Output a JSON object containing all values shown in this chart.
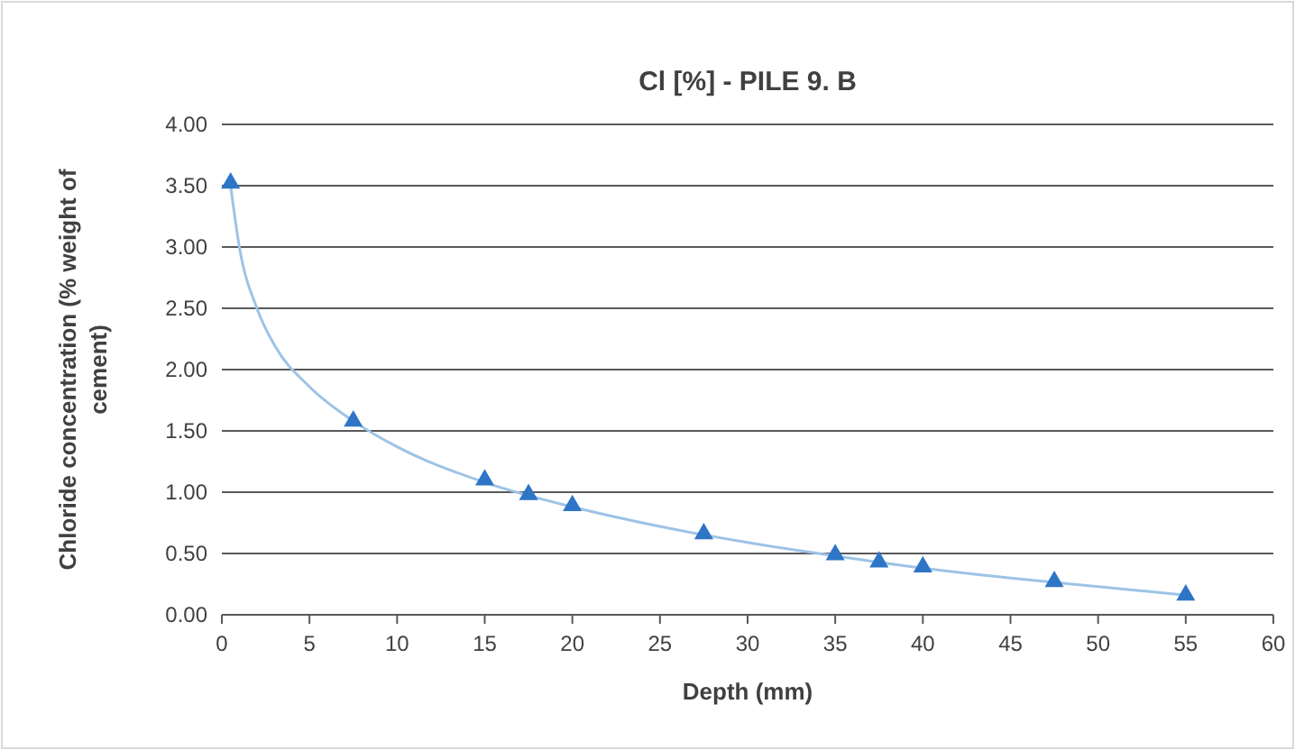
{
  "chart_data": {
    "type": "scatter",
    "title": "Cl [%] - PILE 9. B",
    "xlabel": "Depth (mm)",
    "ylabel": "Chloride concentration (% weight of cement)",
    "xlim": [
      0,
      60
    ],
    "xticks": [
      0,
      5,
      10,
      15,
      20,
      25,
      30,
      35,
      40,
      45,
      50,
      55,
      60
    ],
    "ylim": [
      0,
      4
    ],
    "yticks": [
      {
        "value": 0,
        "label": "0.00"
      },
      {
        "value": 0.5,
        "label": "0.50"
      },
      {
        "value": 1,
        "label": "1.00"
      },
      {
        "value": 1.5,
        "label": "1.50"
      },
      {
        "value": 2,
        "label": "2.00"
      },
      {
        "value": 2.5,
        "label": "2.50"
      },
      {
        "value": 3,
        "label": "3.00"
      },
      {
        "value": 3.5,
        "label": "3.50"
      },
      {
        "value": 4,
        "label": "4.00"
      }
    ],
    "grid": "y",
    "series": [
      {
        "type": "line",
        "color": "#9dc3e6",
        "marker": "none",
        "x": [
          0.5,
          1,
          2,
          3,
          5,
          7.5,
          10,
          15,
          20,
          25,
          30,
          35,
          40,
          45,
          50,
          55
        ],
        "values": [
          3.5,
          3.0,
          2.5,
          2.2,
          1.86,
          1.58,
          1.37,
          1.08,
          0.88,
          0.72,
          0.59,
          0.48,
          0.38,
          0.3,
          0.23,
          0.16
        ]
      },
      {
        "color": "#2e75c6",
        "marker": "triangle",
        "x": [
          0.5,
          7.5,
          15,
          17.5,
          20,
          27.5,
          35,
          37.5,
          40,
          47.5,
          55
        ],
        "values": [
          3.52,
          1.58,
          1.1,
          0.98,
          0.89,
          0.66,
          0.49,
          0.43,
          0.39,
          0.27,
          0.16
        ]
      }
    ]
  }
}
